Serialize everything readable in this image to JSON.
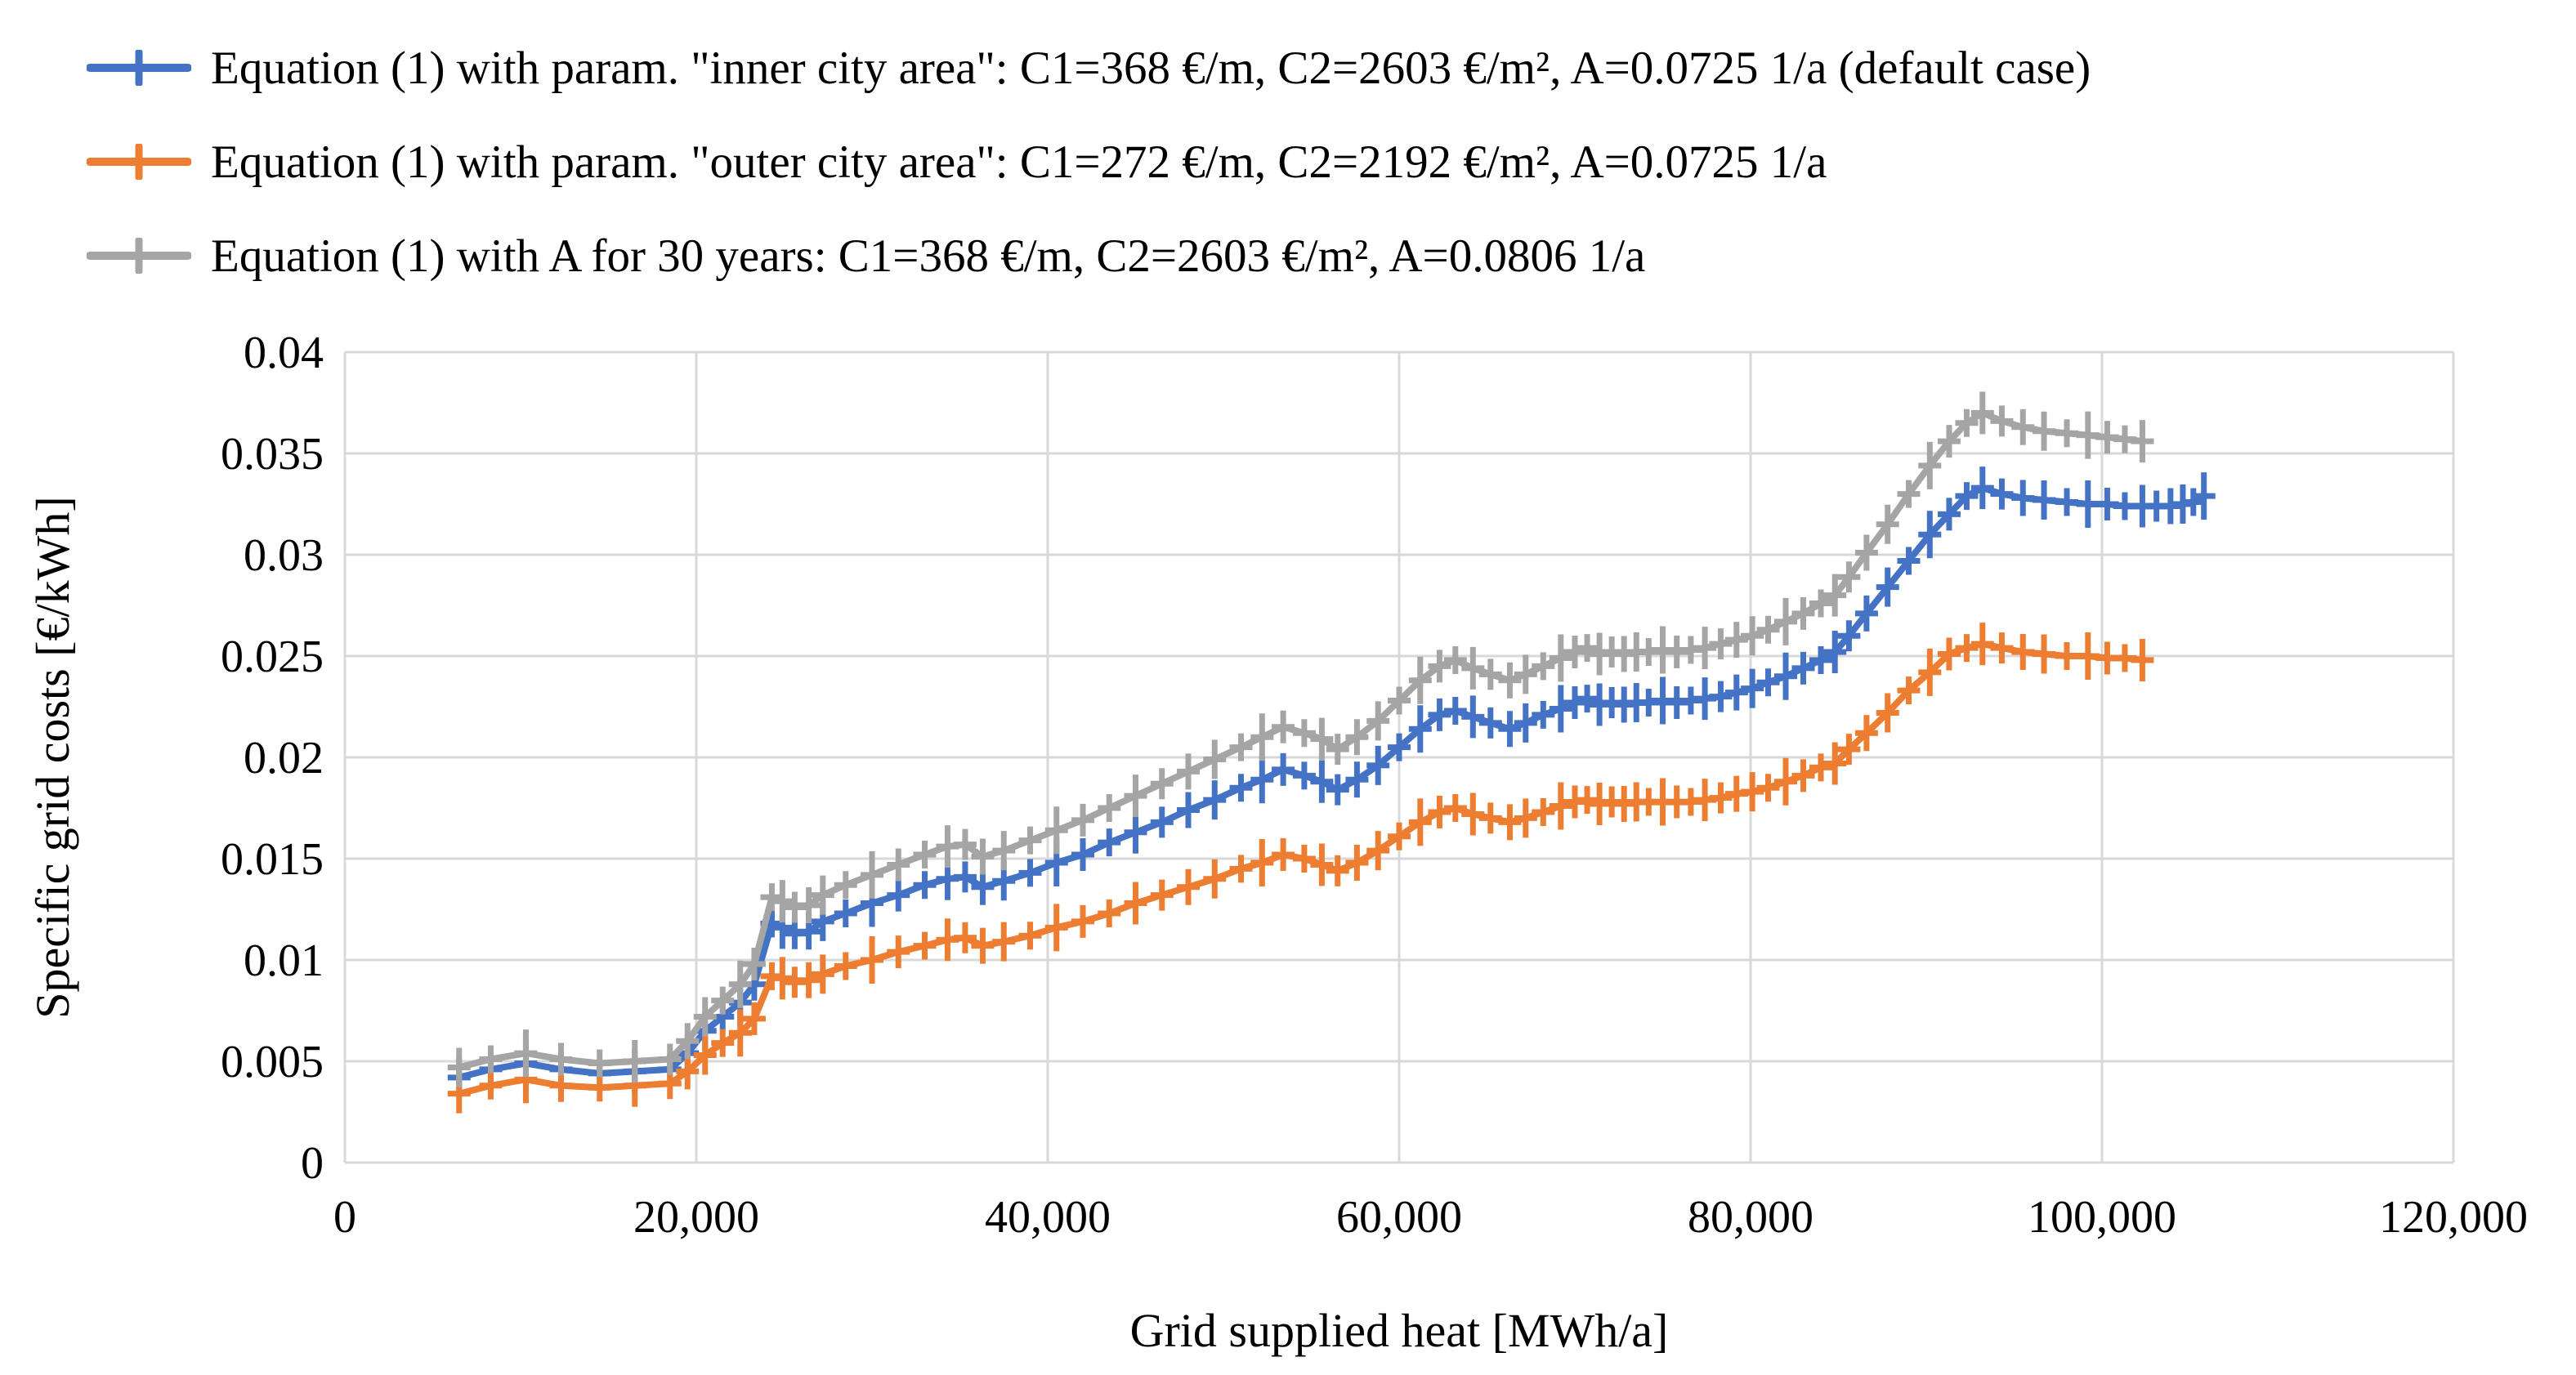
{
  "figure": {
    "background": "#FFFFFF",
    "grid_color": "#D9D9D9",
    "text_color": "#000000"
  },
  "chart_data": {
    "type": "line",
    "title": "",
    "xlabel": "Grid supplied heat [MWh/a]",
    "ylabel": "Specific grid costs [€/kWh]",
    "xlim": [
      0,
      120000
    ],
    "ylim": [
      0,
      0.04
    ],
    "grid": true,
    "legend_position": "top-left",
    "marker": "plus",
    "x_ticks": {
      "values": [
        0,
        20000,
        40000,
        60000,
        80000,
        100000,
        120000
      ],
      "labels": [
        "0",
        "20,000",
        "40,000",
        "60,000",
        "80,000",
        "100,000",
        "120,000"
      ]
    },
    "y_ticks": {
      "values": [
        0,
        0.005,
        0.01,
        0.015,
        0.02,
        0.025,
        0.03,
        0.035,
        0.04
      ],
      "labels": [
        "0",
        "0.005",
        "0.01",
        "0.015",
        "0.02",
        "0.025",
        "0.03",
        "0.035",
        "0.04"
      ]
    },
    "series": [
      {
        "name": "inner-city-default",
        "label": "Equation (1) with param. \"inner city area\": C1=368 €/m, C2=2603 €/m², A=0.0725 1/a (default case)",
        "color": "#4472C4",
        "x": [
          6500,
          8300,
          10300,
          12300,
          14500,
          16500,
          18500,
          19500,
          20500,
          21500,
          22500,
          23300,
          24300,
          24900,
          25600,
          26400,
          27200,
          28500,
          30000,
          31500,
          33000,
          34300,
          35300,
          36300,
          37500,
          39000,
          40500,
          42000,
          43500,
          45000,
          46500,
          48000,
          49500,
          51000,
          52200,
          53400,
          54600,
          55600,
          56500,
          57600,
          58800,
          60000,
          61200,
          62300,
          63200,
          64200,
          65200,
          66300,
          67200,
          68200,
          69200,
          70000,
          70700,
          71400,
          72100,
          72800,
          73500,
          74200,
          75000,
          75800,
          76600,
          77400,
          78300,
          79200,
          80100,
          81000,
          82000,
          83000,
          84000,
          84800,
          85600,
          86600,
          87800,
          89000,
          90200,
          91300,
          92300,
          93200,
          94300,
          95500,
          96700,
          98000,
          99200,
          100300,
          101300,
          102300,
          103100,
          103900,
          104600,
          105200,
          105800
        ],
        "y": [
          0.0042,
          0.0046,
          0.0049,
          0.0046,
          0.0044,
          0.0045,
          0.0046,
          0.0054,
          0.0065,
          0.0072,
          0.0079,
          0.0088,
          0.0118,
          0.0116,
          0.0113,
          0.0114,
          0.0119,
          0.0123,
          0.0128,
          0.0132,
          0.0137,
          0.014,
          0.0141,
          0.0136,
          0.0139,
          0.0143,
          0.0148,
          0.0152,
          0.0158,
          0.0163,
          0.0168,
          0.0174,
          0.0179,
          0.0185,
          0.0189,
          0.0194,
          0.0191,
          0.0188,
          0.0184,
          0.0189,
          0.0196,
          0.0205,
          0.0214,
          0.0221,
          0.0223,
          0.022,
          0.0217,
          0.0214,
          0.0217,
          0.0221,
          0.0224,
          0.0227,
          0.0229,
          0.0226,
          0.0227,
          0.0226,
          0.0227,
          0.0227,
          0.0228,
          0.0227,
          0.0228,
          0.0229,
          0.023,
          0.0232,
          0.0234,
          0.0237,
          0.024,
          0.0244,
          0.0248,
          0.0252,
          0.026,
          0.0271,
          0.0284,
          0.0297,
          0.031,
          0.032,
          0.0329,
          0.0333,
          0.033,
          0.0328,
          0.0327,
          0.0326,
          0.0325,
          0.0325,
          0.0324,
          0.0324,
          0.0324,
          0.0324,
          0.0325,
          0.0326,
          0.0329
        ]
      },
      {
        "name": "outer-city",
        "label": "Equation (1) with param. \"outer city area\": C1=272 €/m, C2=2192 €/m², A=0.0725 1/a",
        "color": "#ED7D31",
        "x": [
          6500,
          8300,
          10300,
          12300,
          14500,
          16500,
          18500,
          19500,
          20500,
          21500,
          22500,
          23300,
          24300,
          24900,
          25600,
          26400,
          27200,
          28500,
          30000,
          31500,
          33000,
          34300,
          35300,
          36300,
          37500,
          39000,
          40500,
          42000,
          43500,
          45000,
          46500,
          48000,
          49500,
          51000,
          52200,
          53400,
          54600,
          55600,
          56500,
          57600,
          58800,
          60000,
          61200,
          62300,
          63200,
          64200,
          65200,
          66300,
          67200,
          68200,
          69200,
          70000,
          70700,
          71400,
          72100,
          72800,
          73500,
          74200,
          75000,
          75800,
          76600,
          77400,
          78300,
          79200,
          80100,
          81000,
          82000,
          83000,
          84000,
          84800,
          85600,
          86600,
          87800,
          89000,
          90200,
          91300,
          92300,
          93200,
          94300,
          95500,
          96700,
          98000,
          99200,
          100300,
          101300,
          102300
        ],
        "y": [
          0.0034,
          0.0038,
          0.0041,
          0.0038,
          0.0037,
          0.0038,
          0.0039,
          0.0045,
          0.0053,
          0.0059,
          0.0064,
          0.0071,
          0.0092,
          0.0091,
          0.0089,
          0.009,
          0.0093,
          0.0097,
          0.01,
          0.0104,
          0.0107,
          0.011,
          0.0111,
          0.0107,
          0.0109,
          0.0112,
          0.0116,
          0.0119,
          0.0123,
          0.0128,
          0.0132,
          0.0136,
          0.014,
          0.0145,
          0.0148,
          0.0152,
          0.015,
          0.0147,
          0.0144,
          0.0148,
          0.0154,
          0.0161,
          0.0168,
          0.0173,
          0.0175,
          0.0172,
          0.017,
          0.0168,
          0.017,
          0.0173,
          0.0176,
          0.0178,
          0.0179,
          0.0177,
          0.0178,
          0.0177,
          0.0178,
          0.0178,
          0.0178,
          0.0178,
          0.0178,
          0.0179,
          0.018,
          0.0182,
          0.0183,
          0.0185,
          0.0188,
          0.0191,
          0.0195,
          0.0197,
          0.0204,
          0.0212,
          0.0222,
          0.0233,
          0.0242,
          0.0251,
          0.0254,
          0.0256,
          0.0254,
          0.0252,
          0.0251,
          0.025,
          0.025,
          0.0249,
          0.0249,
          0.0248
        ]
      },
      {
        "name": "a-30-years",
        "label": "Equation (1) with A for 30 years: C1=368 €/m, C2=2603 €/m², A=0.0806 1/a",
        "color": "#A5A5A5",
        "x": [
          6500,
          8300,
          10300,
          12300,
          14500,
          16500,
          18500,
          19500,
          20500,
          21500,
          22500,
          23300,
          24300,
          24900,
          25600,
          26400,
          27200,
          28500,
          30000,
          31500,
          33000,
          34300,
          35300,
          36300,
          37500,
          39000,
          40500,
          42000,
          43500,
          45000,
          46500,
          48000,
          49500,
          51000,
          52200,
          53400,
          54600,
          55600,
          56500,
          57600,
          58800,
          60000,
          61200,
          62300,
          63200,
          64200,
          65200,
          66300,
          67200,
          68200,
          69200,
          70000,
          70700,
          71400,
          72100,
          72800,
          73500,
          74200,
          75000,
          75800,
          76600,
          77400,
          78300,
          79200,
          80100,
          81000,
          82000,
          83000,
          84000,
          84800,
          85600,
          86600,
          87800,
          89000,
          90200,
          91300,
          92300,
          93200,
          94300,
          95500,
          96700,
          98000,
          99200,
          100300,
          101300,
          102300
        ],
        "y": [
          0.0047,
          0.0051,
          0.0054,
          0.0051,
          0.0049,
          0.005,
          0.0051,
          0.006,
          0.0072,
          0.008,
          0.0088,
          0.0098,
          0.0131,
          0.0129,
          0.0126,
          0.0127,
          0.0132,
          0.0137,
          0.0142,
          0.0147,
          0.0152,
          0.0156,
          0.0157,
          0.0151,
          0.0154,
          0.0159,
          0.0164,
          0.0169,
          0.0175,
          0.0181,
          0.0187,
          0.0193,
          0.0199,
          0.0205,
          0.021,
          0.0215,
          0.0212,
          0.0209,
          0.0204,
          0.021,
          0.0218,
          0.0228,
          0.0238,
          0.0245,
          0.0248,
          0.0244,
          0.0241,
          0.0238,
          0.0241,
          0.0245,
          0.0249,
          0.0252,
          0.0254,
          0.0251,
          0.0252,
          0.0251,
          0.0252,
          0.0252,
          0.0253,
          0.0252,
          0.0253,
          0.0254,
          0.0256,
          0.0258,
          0.026,
          0.0263,
          0.0267,
          0.0271,
          0.0276,
          0.028,
          0.0289,
          0.0301,
          0.0315,
          0.033,
          0.0344,
          0.0356,
          0.0365,
          0.037,
          0.0366,
          0.0363,
          0.0361,
          0.036,
          0.0359,
          0.0358,
          0.0357,
          0.0356
        ]
      }
    ]
  }
}
